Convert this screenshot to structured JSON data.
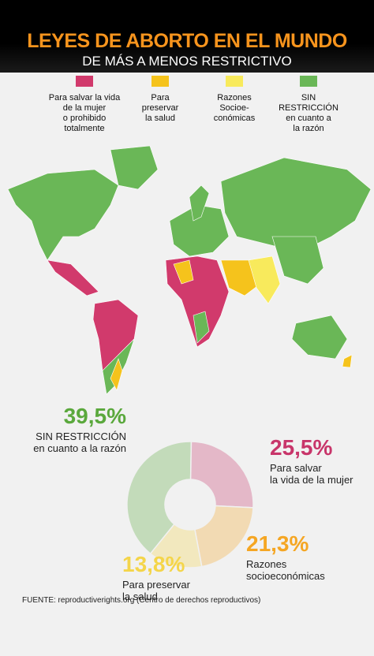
{
  "header": {
    "title": "LEYES DE ABORTO EN EL MUNDO",
    "subtitle": "DE MÁS A MENOS RESTRICTIVO"
  },
  "legend": {
    "items": [
      {
        "label": "Para salvar la vida\nde la mujer\no prohibido\ntotalmente",
        "color": "#d13a6c"
      },
      {
        "label": "Para\npreservar\nla salud",
        "color": "#f5c31c"
      },
      {
        "label": "Razones\nSocioe-\nconómicas",
        "color": "#f8ea5c"
      },
      {
        "label": "SIN\nRESTRICCIÓN\nen cuanto a\nla razón",
        "color": "#6ab757"
      }
    ]
  },
  "chart_data": {
    "type": "pie",
    "categories": [
      "SIN RESTRICCIÓN\nen cuanto a la razón",
      "Para salvar\nla vida de la mujer",
      "Razones\nsocioeconómicas",
      "Para preservar\nla salud"
    ],
    "values": [
      39.5,
      25.5,
      21.3,
      13.8
    ],
    "value_labels": [
      "39,5%",
      "25,5%",
      "21,3%",
      "13,8%"
    ],
    "colors": [
      "#5aa83c",
      "#c8356a",
      "#f5a623",
      "#f4d54a"
    ]
  },
  "source": "FUENTE: reproductiverights.org (Centro de derechos reproductivos)"
}
